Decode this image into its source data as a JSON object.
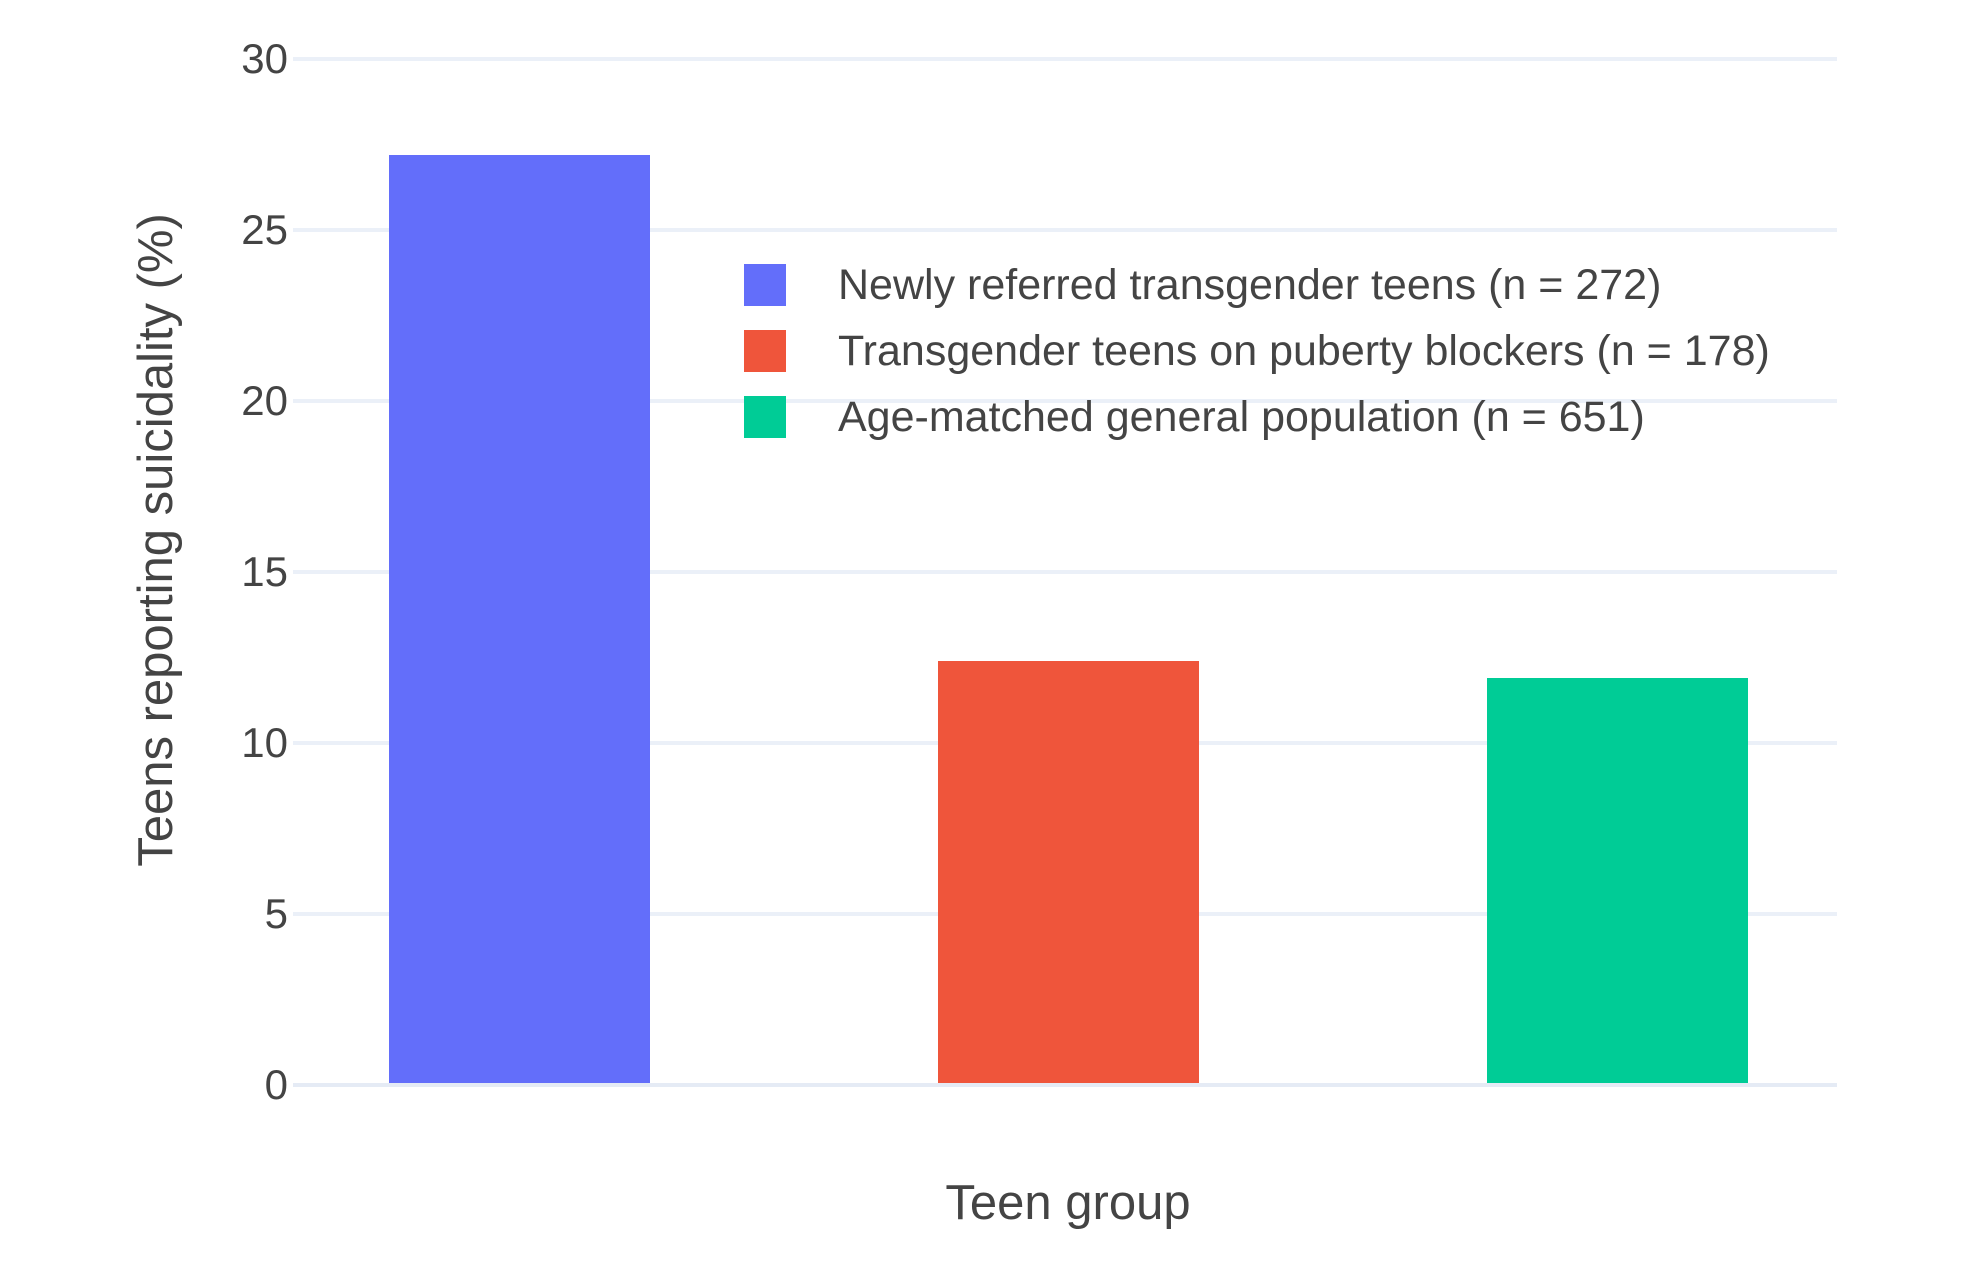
{
  "chart_data": {
    "type": "bar",
    "title": "",
    "xlabel": "Teen group",
    "ylabel": "Teens reporting suicidality (%)",
    "ylim": [
      0,
      30
    ],
    "yticks": [
      0,
      5,
      10,
      15,
      20,
      25,
      30
    ],
    "grid": true,
    "legend_position": "inside-top-center",
    "series": [
      {
        "name": "Newly referred transgender teens (n = 272)",
        "value": 27.2,
        "color": "#636EFA"
      },
      {
        "name": "Transgender teens on puberty blockers (n = 178)",
        "value": 12.4,
        "color": "#EF553B"
      },
      {
        "name": "Age-matched general population (n = 651)",
        "value": 11.9,
        "color": "#00CC96"
      }
    ],
    "colors": {
      "background": "#FFFFFF",
      "gridline": "#EBF0F8",
      "zeroline": "#E5EBF5",
      "text": "#444444"
    }
  }
}
